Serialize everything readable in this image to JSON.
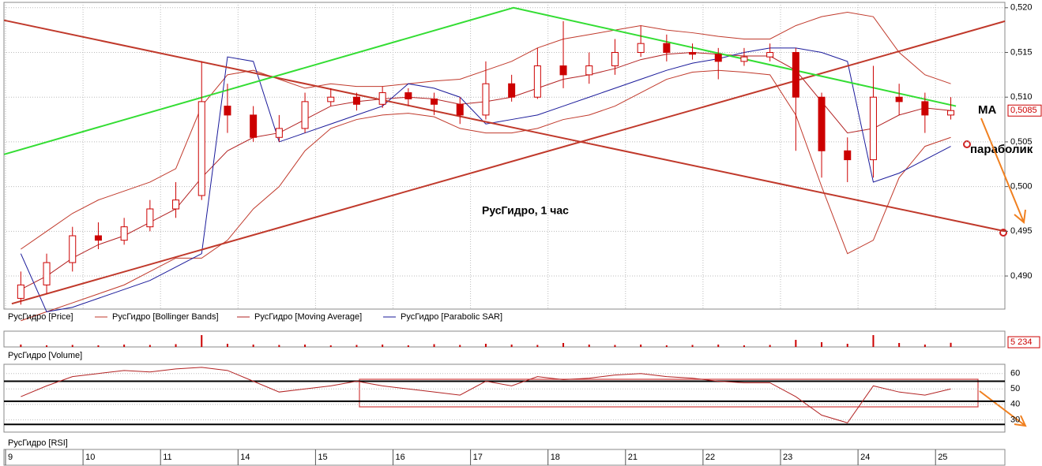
{
  "chart_data": {
    "type": "candlestick",
    "title": "РусГидро,  1 час",
    "categories": [
      "9",
      null,
      null,
      "10",
      null,
      null,
      "11",
      null,
      null,
      "14",
      null,
      null,
      "15",
      null,
      null,
      "16",
      null,
      null,
      "17",
      null,
      null,
      "18",
      null,
      null,
      "21",
      null,
      null,
      "22",
      null,
      null,
      "23",
      null,
      null,
      "24",
      null,
      null,
      "25"
    ],
    "price": {
      "name": "РусГидро [Price]",
      "color": "#cc0000",
      "ylim": [
        0.4863,
        0.5206
      ],
      "yticks": [
        {
          "value": 0.49,
          "label": "0,490"
        },
        {
          "value": 0.495,
          "label": "0,495"
        },
        {
          "value": 0.5,
          "label": "0,500"
        },
        {
          "value": 0.505,
          "label": "0,505"
        },
        {
          "value": 0.51,
          "label": "0,510"
        },
        {
          "value": 0.515,
          "label": "0,515"
        },
        {
          "value": 0.52,
          "label": "0,520"
        }
      ],
      "open": [
        0.4875,
        0.489,
        0.4915,
        0.4945,
        0.494,
        0.4955,
        0.4975,
        0.499,
        0.509,
        0.508,
        0.5055,
        0.5065,
        0.5095,
        0.51,
        0.5092,
        0.5105,
        0.5098,
        0.5092,
        0.508,
        0.5115,
        0.51,
        0.5135,
        0.5125,
        0.5135,
        0.515,
        0.516,
        0.515,
        0.5148,
        0.514,
        0.5145,
        0.515,
        0.51,
        0.504,
        0.503,
        0.51,
        0.5095,
        0.508
      ],
      "close": [
        0.489,
        0.4915,
        0.4945,
        0.494,
        0.4955,
        0.4975,
        0.4985,
        0.5095,
        0.508,
        0.5055,
        0.5065,
        0.5095,
        0.51,
        0.5092,
        0.5105,
        0.5098,
        0.5092,
        0.508,
        0.5115,
        0.51,
        0.5135,
        0.5125,
        0.5135,
        0.515,
        0.516,
        0.515,
        0.5148,
        0.514,
        0.5145,
        0.515,
        0.51,
        0.504,
        0.503,
        0.51,
        0.5095,
        0.508,
        0.5085
      ],
      "high": [
        0.4905,
        0.4925,
        0.4955,
        0.496,
        0.4965,
        0.4985,
        0.5005,
        0.514,
        0.5115,
        0.509,
        0.508,
        0.5105,
        0.511,
        0.5105,
        0.5112,
        0.511,
        0.5105,
        0.51,
        0.514,
        0.5125,
        0.5155,
        0.5185,
        0.515,
        0.5165,
        0.518,
        0.517,
        0.516,
        0.5155,
        0.5155,
        0.516,
        0.5155,
        0.5105,
        0.5055,
        0.5135,
        0.5115,
        0.5105,
        0.51
      ],
      "low": [
        0.4868,
        0.488,
        0.4905,
        0.493,
        0.4935,
        0.495,
        0.4965,
        0.4985,
        0.506,
        0.505,
        0.505,
        0.506,
        0.509,
        0.5085,
        0.5088,
        0.509,
        0.508,
        0.507,
        0.5075,
        0.5095,
        0.5098,
        0.511,
        0.5115,
        0.5125,
        0.5145,
        0.514,
        0.5142,
        0.512,
        0.5135,
        0.514,
        0.504,
        0.501,
        0.5005,
        0.501,
        0.508,
        0.506,
        0.5075
      ],
      "last_label": "0,5085"
    },
    "bollinger": {
      "name": "РусГидро [Bollinger Bands]",
      "color": "#c0392b",
      "upper": [
        0.493,
        0.495,
        0.497,
        0.4985,
        0.4995,
        0.5005,
        0.502,
        0.509,
        0.5125,
        0.513,
        0.512,
        0.511,
        0.5115,
        0.5112,
        0.5112,
        0.5115,
        0.5118,
        0.512,
        0.513,
        0.514,
        0.5155,
        0.5165,
        0.517,
        0.5175,
        0.518,
        0.5175,
        0.5172,
        0.5168,
        0.5165,
        0.5165,
        0.518,
        0.519,
        0.5195,
        0.519,
        0.515,
        0.5125,
        0.5115
      ],
      "lower": [
        0.485,
        0.486,
        0.487,
        0.488,
        0.489,
        0.4905,
        0.492,
        0.492,
        0.494,
        0.4975,
        0.5,
        0.504,
        0.5065,
        0.5075,
        0.508,
        0.5082,
        0.5078,
        0.5065,
        0.506,
        0.506,
        0.5065,
        0.5075,
        0.508,
        0.509,
        0.5105,
        0.512,
        0.5128,
        0.513,
        0.5128,
        0.5125,
        0.508,
        0.5,
        0.4925,
        0.494,
        0.501,
        0.5045,
        0.5055
      ]
    },
    "ma": {
      "name": "РусГидро [Moving Average]",
      "color": "#b22222",
      "values": [
        0.4885,
        0.49,
        0.492,
        0.4935,
        0.4945,
        0.496,
        0.4975,
        0.501,
        0.504,
        0.5055,
        0.506,
        0.5075,
        0.509,
        0.5095,
        0.5098,
        0.51,
        0.5098,
        0.5092,
        0.5095,
        0.51,
        0.511,
        0.512,
        0.5125,
        0.5132,
        0.5142,
        0.5148,
        0.515,
        0.5148,
        0.5146,
        0.5146,
        0.513,
        0.5095,
        0.506,
        0.5065,
        0.508,
        0.5088,
        0.5085
      ]
    },
    "sar": {
      "name": "РусГидро [Parabolic SAR]",
      "color": "#1a1a9a",
      "values": [
        0.4925,
        0.486,
        0.4865,
        0.4875,
        0.4885,
        0.4895,
        0.491,
        0.4925,
        0.5145,
        0.514,
        0.505,
        0.506,
        0.507,
        0.508,
        0.509,
        0.5115,
        0.511,
        0.51,
        0.507,
        0.5075,
        0.508,
        0.509,
        0.51,
        0.511,
        0.512,
        0.513,
        0.5138,
        0.5143,
        0.515,
        0.5155,
        0.5155,
        0.515,
        0.514,
        0.5005,
        0.5015,
        0.503,
        0.5045
      ]
    },
    "trendlines": [
      {
        "color": "#c0392b",
        "x": [
          -0.65,
          38.1
        ],
        "y": [
          0.5186,
          0.495
        ]
      },
      {
        "color": "#c0392b",
        "x": [
          -0.35,
          38.1
        ],
        "y": [
          0.4869,
          0.5185
        ]
      },
      {
        "color": "#33dd33",
        "x": [
          -0.65,
          19.07,
          36.2
        ],
        "y": [
          0.5036,
          0.52,
          0.509
        ]
      }
    ],
    "annotations": [
      "МА",
      "параболик"
    ],
    "volume": {
      "name": "РусГидро [Volume]",
      "color": "#cc0000",
      "ylim": [
        0,
        20000
      ],
      "values": [
        3000,
        2000,
        2500,
        2000,
        3000,
        2500,
        3500,
        15000,
        4000,
        3000,
        2500,
        3000,
        2000,
        2500,
        3000,
        2000,
        3500,
        2500,
        4000,
        3000,
        2500,
        5000,
        3000,
        2500,
        3000,
        2000,
        2500,
        3000,
        2000,
        2500,
        9000,
        6000,
        4000,
        15000,
        5000,
        3000,
        5234
      ],
      "last_label": "5 234"
    },
    "rsi": {
      "name": "РусГидро [RSI]",
      "color": "#b22222",
      "ylim": [
        22,
        66
      ],
      "yticks": [
        30,
        40,
        50,
        60
      ],
      "levels": [
        55,
        42,
        27
      ],
      "values": [
        45,
        52,
        58,
        60,
        62,
        61,
        63,
        64,
        62,
        55,
        48,
        50,
        52,
        55,
        52,
        50,
        48,
        46,
        55,
        52,
        58,
        56,
        57,
        59,
        60,
        58,
        57,
        55,
        54,
        54,
        45,
        33,
        28,
        52,
        48,
        46,
        50
      ]
    }
  }
}
